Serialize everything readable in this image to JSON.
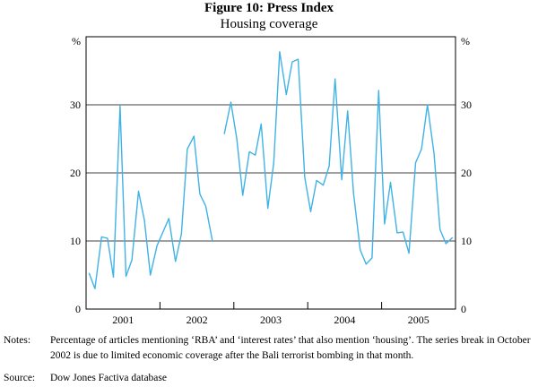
{
  "figure": {
    "title": "Figure 10: Press Index",
    "subtitle": "Housing coverage"
  },
  "notes": {
    "notes_label": "Notes:",
    "notes_text": "Percentage of articles mentioning ‘RBA’ and ‘interest rates’ that also mention ‘housing’. The series break in October 2002 is due to limited economic coverage after the Bali terrorist bombing in that month.",
    "source_label": "Source:",
    "source_text": "Dow Jones Factiva database"
  },
  "colors": {
    "series": "#3fb2e6",
    "axis": "#000000"
  },
  "chart_data": {
    "type": "line",
    "title": "Figure 10: Press Index",
    "subtitle": "Housing coverage",
    "ylabel_left": "%",
    "ylabel_right": "%",
    "ylim": [
      0,
      40
    ],
    "yticks": [
      0,
      10,
      20,
      30
    ],
    "xlim": [
      2000.5,
      2005.5
    ],
    "year_labels": [
      {
        "label": "2001",
        "center": 2001.0
      },
      {
        "label": "2002",
        "center": 2002.0
      },
      {
        "label": "2003",
        "center": 2003.0
      },
      {
        "label": "2004",
        "center": 2004.0
      },
      {
        "label": "2005",
        "center": 2005.0
      }
    ],
    "year_boundaries": [
      2001.5,
      2002.5,
      2003.5,
      2004.5
    ],
    "series": [
      {
        "name": "Press Index – housing (segment 1)",
        "points": [
          [
            2000.54,
            5.3
          ],
          [
            2000.62,
            3.0
          ],
          [
            2000.71,
            10.6
          ],
          [
            2000.79,
            10.4
          ],
          [
            2000.87,
            4.7
          ],
          [
            2000.96,
            29.8
          ],
          [
            2001.04,
            4.8
          ],
          [
            2001.12,
            7.2
          ],
          [
            2001.21,
            17.3
          ],
          [
            2001.29,
            13.0
          ],
          [
            2001.37,
            5.0
          ],
          [
            2001.46,
            9.3
          ],
          [
            2001.54,
            11.3
          ],
          [
            2001.62,
            13.3
          ],
          [
            2001.71,
            7.0
          ],
          [
            2001.79,
            11.0
          ],
          [
            2001.87,
            23.5
          ],
          [
            2001.96,
            25.4
          ],
          [
            2002.04,
            16.9
          ],
          [
            2002.12,
            15.1
          ],
          [
            2002.21,
            10.0
          ]
        ]
      },
      {
        "name": "Press Index – housing (segment 2)",
        "points": [
          [
            2002.37,
            25.7
          ],
          [
            2002.46,
            30.4
          ],
          [
            2002.54,
            25.0
          ],
          [
            2002.62,
            16.7
          ],
          [
            2002.71,
            23.1
          ],
          [
            2002.79,
            22.6
          ],
          [
            2002.87,
            27.2
          ],
          [
            2002.96,
            14.8
          ],
          [
            2003.04,
            21.5
          ],
          [
            2003.12,
            37.8
          ],
          [
            2003.21,
            31.5
          ],
          [
            2003.29,
            36.3
          ],
          [
            2003.37,
            36.7
          ],
          [
            2003.46,
            19.3
          ],
          [
            2003.54,
            14.3
          ],
          [
            2003.62,
            18.9
          ],
          [
            2003.71,
            18.2
          ],
          [
            2003.79,
            21.0
          ],
          [
            2003.87,
            33.8
          ],
          [
            2003.96,
            19.0
          ],
          [
            2004.04,
            29.1
          ],
          [
            2004.12,
            17.0
          ],
          [
            2004.21,
            8.7
          ],
          [
            2004.29,
            6.6
          ],
          [
            2004.37,
            7.5
          ],
          [
            2004.46,
            32.1
          ],
          [
            2004.54,
            12.5
          ],
          [
            2004.62,
            18.6
          ],
          [
            2004.71,
            11.2
          ],
          [
            2004.79,
            11.3
          ],
          [
            2004.87,
            8.2
          ],
          [
            2004.96,
            21.5
          ],
          [
            2005.04,
            23.5
          ],
          [
            2005.12,
            30.0
          ],
          [
            2005.21,
            22.8
          ],
          [
            2005.29,
            11.7
          ],
          [
            2005.37,
            9.6
          ],
          [
            2005.46,
            10.5
          ]
        ]
      }
    ]
  }
}
